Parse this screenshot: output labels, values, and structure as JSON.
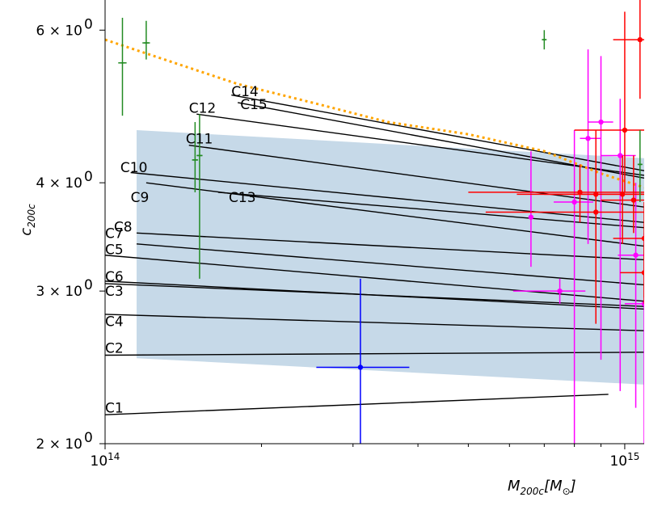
{
  "chart_data": {
    "type": "scatter",
    "xscale": "log",
    "yscale": "log",
    "xlim": [
      100000000000000.0,
      1090000000000000.0
    ],
    "ylim": [
      2.0,
      6.5
    ],
    "xlabel_main": "M",
    "xlabel_sub": "200c",
    "xlabel_bracket_open": "[M",
    "xlabel_bracket_sub": "⊙",
    "xlabel_bracket_close": "]",
    "ylabel_main": "c",
    "ylabel_sub": "200c",
    "x_ticks": [
      {
        "value": 100000000000000.0,
        "base": "10",
        "exp": "14"
      },
      {
        "value": 1000000000000000.0,
        "base": "10",
        "exp": "15"
      }
    ],
    "y_ticks": [
      {
        "value": 2,
        "mant": "2 × 10",
        "exp": "0"
      },
      {
        "value": 3,
        "mant": "3 × 10",
        "exp": "0"
      },
      {
        "value": 4,
        "mant": "4 × 10",
        "exp": "0"
      },
      {
        "value": 6,
        "mant": "6 × 10",
        "exp": "0"
      }
    ],
    "band": {
      "color": "#c6d9e8",
      "points": [
        [
          115000000000000.0,
          4.6
        ],
        [
          1090000000000000.0,
          4.27
        ],
        [
          1090000000000000.0,
          2.34
        ],
        [
          115000000000000.0,
          2.51
        ]
      ]
    },
    "orange_curve": {
      "color": "#ffa500",
      "points": [
        [
          100000000000000.0,
          5.85
        ],
        [
          130000000000000.0,
          5.55
        ],
        [
          180000000000000.0,
          5.2
        ],
        [
          250000000000000.0,
          4.95
        ],
        [
          350000000000000.0,
          4.7
        ],
        [
          500000000000000.0,
          4.55
        ],
        [
          700000000000000.0,
          4.35
        ],
        [
          900000000000000.0,
          4.1
        ],
        [
          1090000000000000.0,
          3.95
        ]
      ]
    },
    "lines": [
      {
        "name": "C1",
        "x": [
          100000000000000.0,
          930000000000000.0
        ],
        "y": [
          2.16,
          2.28
        ],
        "label_at": [
          100000000000000.0,
          2.2
        ]
      },
      {
        "name": "C2",
        "x": [
          100000000000000.0,
          1090000000000000.0
        ],
        "y": [
          2.53,
          2.55
        ],
        "label_at": [
          100000000000000.0,
          2.58
        ]
      },
      {
        "name": "C3",
        "x": [
          100000000000000.0,
          1090000000000000.0
        ],
        "y": [
          3.06,
          2.88
        ],
        "label_at": [
          100000000000000.0,
          3.0
        ]
      },
      {
        "name": "C4",
        "x": [
          100000000000000.0,
          1090000000000000.0
        ],
        "y": [
          2.82,
          2.7
        ],
        "label_at": [
          100000000000000.0,
          2.77
        ]
      },
      {
        "name": "C5",
        "x": [
          100000000000000.0,
          1090000000000000.0
        ],
        "y": [
          3.3,
          2.92
        ],
        "label_at": [
          100000000000000.0,
          3.35
        ]
      },
      {
        "name": "C6",
        "x": [
          100000000000000.0,
          1090000000000000.0
        ],
        "y": [
          3.08,
          2.86
        ],
        "label_at": [
          100000000000000.0,
          3.12
        ]
      },
      {
        "name": "C7",
        "x": [
          115000000000000.0,
          1090000000000000.0
        ],
        "y": [
          3.5,
          3.26
        ],
        "label_at": [
          100000000000000.0,
          3.5
        ]
      },
      {
        "name": "C8",
        "x": [
          115000000000000.0,
          1090000000000000.0
        ],
        "y": [
          3.4,
          3.05
        ],
        "label_at": [
          104000000000000.0,
          3.56
        ]
      },
      {
        "name": "C9",
        "x": [
          120000000000000.0,
          1090000000000000.0
        ],
        "y": [
          4.0,
          3.38
        ],
        "label_at": [
          112000000000000.0,
          3.85
        ]
      },
      {
        "name": "C10",
        "x": [
          112000000000000.0,
          1090000000000000.0
        ],
        "y": [
          4.11,
          3.6
        ],
        "label_at": [
          107000000000000.0,
          4.17
        ]
      },
      {
        "name": "C11",
        "x": [
          145000000000000.0,
          1090000000000000.0
        ],
        "y": [
          4.42,
          3.75
        ],
        "label_at": [
          143000000000000.0,
          4.5
        ]
      },
      {
        "name": "C12",
        "x": [
          150000000000000.0,
          1090000000000000.0
        ],
        "y": [
          4.8,
          4.08
        ],
        "label_at": [
          145000000000000.0,
          4.88
        ]
      },
      {
        "name": "C13",
        "x": [
          165000000000000.0,
          1090000000000000.0
        ],
        "y": [
          3.9,
          3.55
        ],
        "label_at": [
          173000000000000.0,
          3.85
        ]
      },
      {
        "name": "C14",
        "x": [
          175000000000000.0,
          1090000000000000.0
        ],
        "y": [
          5.05,
          4.13
        ],
        "label_at": [
          175000000000000.0,
          5.1
        ]
      },
      {
        "name": "C15",
        "x": [
          180000000000000.0,
          1090000000000000.0
        ],
        "y": [
          4.95,
          4.05
        ],
        "label_at": [
          182000000000000.0,
          4.93
        ]
      }
    ],
    "green_points": {
      "color": "#228b22",
      "marker": "plus",
      "points": [
        {
          "x": 108000000000000.0,
          "y": 5.5,
          "xerr": [
            106000000000000.0,
            110000000000000.0
          ],
          "yerr": [
            4.78,
            6.2
          ]
        },
        {
          "x": 120000000000000.0,
          "y": 5.8,
          "xerr": [
            118000000000000.0,
            122000000000000.0
          ],
          "yerr": [
            5.55,
            6.15
          ]
        },
        {
          "x": 149000000000000.0,
          "y": 4.25,
          "xerr": [
            147000000000000.0,
            151000000000000.0
          ],
          "yerr": [
            3.9,
            4.7
          ]
        },
        {
          "x": 152000000000000.0,
          "y": 4.3,
          "xerr": [
            150000000000000.0,
            154000000000000.0
          ],
          "yerr": [
            3.1,
            4.8
          ]
        },
        {
          "x": 700000000000000.0,
          "y": 5.85,
          "xerr": [
            695000000000000.0,
            705000000000000.0
          ],
          "yerr": [
            5.7,
            6.0
          ]
        },
        {
          "x": 1070000000000000.0,
          "y": 4.2,
          "xerr": [
            1060000000000000.0,
            1080000000000000.0
          ],
          "yerr": [
            3.8,
            4.6
          ]
        }
      ]
    },
    "blue_points": {
      "color": "#0000ff",
      "points": [
        {
          "x": 310000000000000.0,
          "y": 2.45,
          "xerr": [
            255000000000000.0,
            385000000000000.0
          ],
          "yerr": [
            2.0,
            3.1
          ]
        }
      ]
    },
    "red_points": {
      "color": "#ff0000",
      "points": [
        {
          "x": 820000000000000.0,
          "y": 3.9,
          "xerr": [
            500000000000000.0,
            1090000000000000.0
          ],
          "yerr": [
            3.6,
            4.2
          ]
        },
        {
          "x": 880000000000000.0,
          "y": 3.88,
          "xerr": [
            620000000000000.0,
            1090000000000000.0
          ],
          "yerr": [
            2.75,
            4.6
          ]
        },
        {
          "x": 880000000000000.0,
          "y": 3.7,
          "xerr": [
            540000000000000.0,
            1090000000000000.0
          ],
          "yerr": [
            3.1,
            4.35
          ]
        },
        {
          "x": 990000000000000.0,
          "y": 3.88,
          "xerr": [
            700000000000000.0,
            1090000000000000.0
          ],
          "yerr": [
            3.4,
            4.3
          ]
        },
        {
          "x": 1000000000000000.0,
          "y": 4.6,
          "xerr": [
            800000000000000.0,
            1090000000000000.0
          ],
          "yerr": [
            3.9,
            6.3
          ]
        },
        {
          "x": 1070000000000000.0,
          "y": 5.85,
          "xerr": [
            950000000000000.0,
            1090000000000000.0
          ],
          "yerr": [
            5.0,
            6.6
          ]
        },
        {
          "x": 1040000000000000.0,
          "y": 3.82,
          "xerr": [
            900000000000000.0,
            1090000000000000.0
          ],
          "yerr": [
            3.5,
            4.3
          ]
        },
        {
          "x": 1090000000000000.0,
          "y": 3.45,
          "xerr": [
            950000000000000.0,
            1090000000000000.0
          ],
          "yerr": [
            2.9,
            3.8
          ]
        },
        {
          "x": 1090000000000000.0,
          "y": 3.15,
          "xerr": [
            980000000000000.0,
            1090000000000000.0
          ],
          "yerr": [
            2.95,
            3.4
          ]
        }
      ]
    },
    "magenta_points": {
      "color": "#ff00ff",
      "points": [
        {
          "x": 660000000000000.0,
          "y": 3.65,
          "xerr": [
            660000000000000.0,
            660000000000000.0
          ],
          "yerr": [
            3.2,
            4.35
          ]
        },
        {
          "x": 750000000000000.0,
          "y": 3.0,
          "xerr": [
            610000000000000.0,
            840000000000000.0
          ],
          "yerr": [
            2.9,
            3.1
          ]
        },
        {
          "x": 800000000000000.0,
          "y": 3.8,
          "xerr": [
            730000000000000.0,
            870000000000000.0
          ],
          "yerr": [
            2.0,
            4.6
          ]
        },
        {
          "x": 850000000000000.0,
          "y": 4.5,
          "xerr": [
            820000000000000.0,
            900000000000000.0
          ],
          "yerr": [
            3.4,
            5.7
          ]
        },
        {
          "x": 900000000000000.0,
          "y": 4.7,
          "xerr": [
            850000000000000.0,
            950000000000000.0
          ],
          "yerr": [
            2.5,
            5.6
          ]
        },
        {
          "x": 980000000000000.0,
          "y": 4.3,
          "xerr": [
            900000000000000.0,
            1050000000000000.0
          ],
          "yerr": [
            2.3,
            5.0
          ]
        },
        {
          "x": 1050000000000000.0,
          "y": 3.3,
          "xerr": [
            970000000000000.0,
            1090000000000000.0
          ],
          "yerr": [
            2.2,
            4.0
          ]
        },
        {
          "x": 1090000000000000.0,
          "y": 2.9,
          "xerr": [
            1000000000000000.0,
            1090000000000000.0
          ],
          "yerr": [
            2.0,
            3.5
          ]
        }
      ]
    }
  }
}
